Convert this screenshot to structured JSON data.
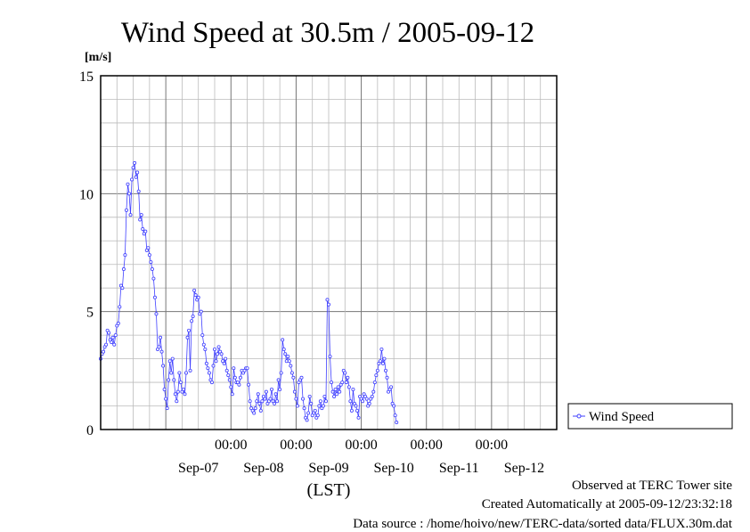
{
  "chart_data": {
    "type": "line",
    "title": "Wind Speed at 30.5m / 2005-09-12",
    "ylabel": "[m/s]",
    "xlabel": "(LST)",
    "ylim": [
      0,
      15
    ],
    "y_ticks": [
      "0",
      "5",
      "10",
      "15"
    ],
    "x_range": [
      "2005-09-06 00:00",
      "2005-09-12 24:00"
    ],
    "x_tick_labels": [
      "00:00",
      "00:00",
      "00:00",
      "00:00",
      "00:00"
    ],
    "date_labels": [
      "Sep-07",
      "Sep-08",
      "Sep-09",
      "Sep-10",
      "Sep-11",
      "Sep-12"
    ],
    "grid": true,
    "legend_position": "right",
    "series": [
      {
        "name": "Wind Speed",
        "color": "#4040ff",
        "x_interval_hours": 0.5,
        "values": [
          3.0,
          3.2,
          3.3,
          3.5,
          3.6,
          4.2,
          4.1,
          3.8,
          3.7,
          3.9,
          3.6,
          4.0,
          4.4,
          4.5,
          5.2,
          6.1,
          6.0,
          6.8,
          7.4,
          9.3,
          10.4,
          10.0,
          9.1,
          10.6,
          11.1,
          11.3,
          10.7,
          10.9,
          10.1,
          8.9,
          9.1,
          8.5,
          8.3,
          8.4,
          7.6,
          7.7,
          7.4,
          7.1,
          6.8,
          6.4,
          5.6,
          4.9,
          3.4,
          3.5,
          3.9,
          3.3,
          2.7,
          1.7,
          1.3,
          0.9,
          2.1,
          2.9,
          2.4,
          3.0,
          2.1,
          1.5,
          1.2,
          1.6,
          2.4,
          2.0,
          1.6,
          1.7,
          1.5,
          2.4,
          3.9,
          4.2,
          2.5,
          4.6,
          4.8,
          5.9,
          5.7,
          5.5,
          5.6,
          4.9,
          5.0,
          4.0,
          3.6,
          3.4,
          2.8,
          2.6,
          2.4,
          2.1,
          2.0,
          2.7,
          3.4,
          2.9,
          3.2,
          3.5,
          3.3,
          3.2,
          2.9,
          2.8,
          3.0,
          2.5,
          2.3,
          2.1,
          1.8,
          1.5,
          2.6,
          2.2,
          2.0,
          2.0,
          1.9,
          2.2,
          2.5,
          2.4,
          2.5,
          2.6,
          2.6,
          1.9,
          1.2,
          0.9,
          0.8,
          0.7,
          0.9,
          1.2,
          1.5,
          1.1,
          0.8,
          1.2,
          1.4,
          1.3,
          1.6,
          1.1,
          1.2,
          1.3,
          1.7,
          1.2,
          1.1,
          1.5,
          1.2,
          2.1,
          1.7,
          2.4,
          3.8,
          3.4,
          3.2,
          2.9,
          3.1,
          2.9,
          2.7,
          2.4,
          2.2,
          1.6,
          1.3,
          1.0,
          2.0,
          2.1,
          2.2,
          1.3,
          0.9,
          0.5,
          0.4,
          0.7,
          1.4,
          1.1,
          0.6,
          0.7,
          0.8,
          0.5,
          0.6,
          1.0,
          1.2,
          0.9,
          1.0,
          1.4,
          1.2,
          5.5,
          5.3,
          3.1,
          2.0,
          1.6,
          1.4,
          1.7,
          1.5,
          1.8,
          1.6,
          1.9,
          2.0,
          2.5,
          2.4,
          2.0,
          2.2,
          1.8,
          1.2,
          0.8,
          1.7,
          1.1,
          1.0,
          0.8,
          0.5,
          1.4,
          1.3,
          1.2,
          1.5,
          1.4,
          1.3,
          1.0,
          1.1,
          1.3,
          1.4,
          1.6,
          2.0,
          2.3,
          2.5,
          2.8,
          2.9,
          3.4,
          2.8,
          3.0,
          2.5,
          2.2,
          1.6,
          1.7,
          1.8,
          1.1,
          1.0,
          0.6,
          0.3
        ]
      }
    ]
  },
  "footer": {
    "observed": "Observed at TERC Tower site",
    "created": "Created Automatically at 2005-09-12/23:32:18",
    "source": "Data source : /home/hoivo/new/TERC-data/sorted  data/FLUX.30m.dat"
  }
}
